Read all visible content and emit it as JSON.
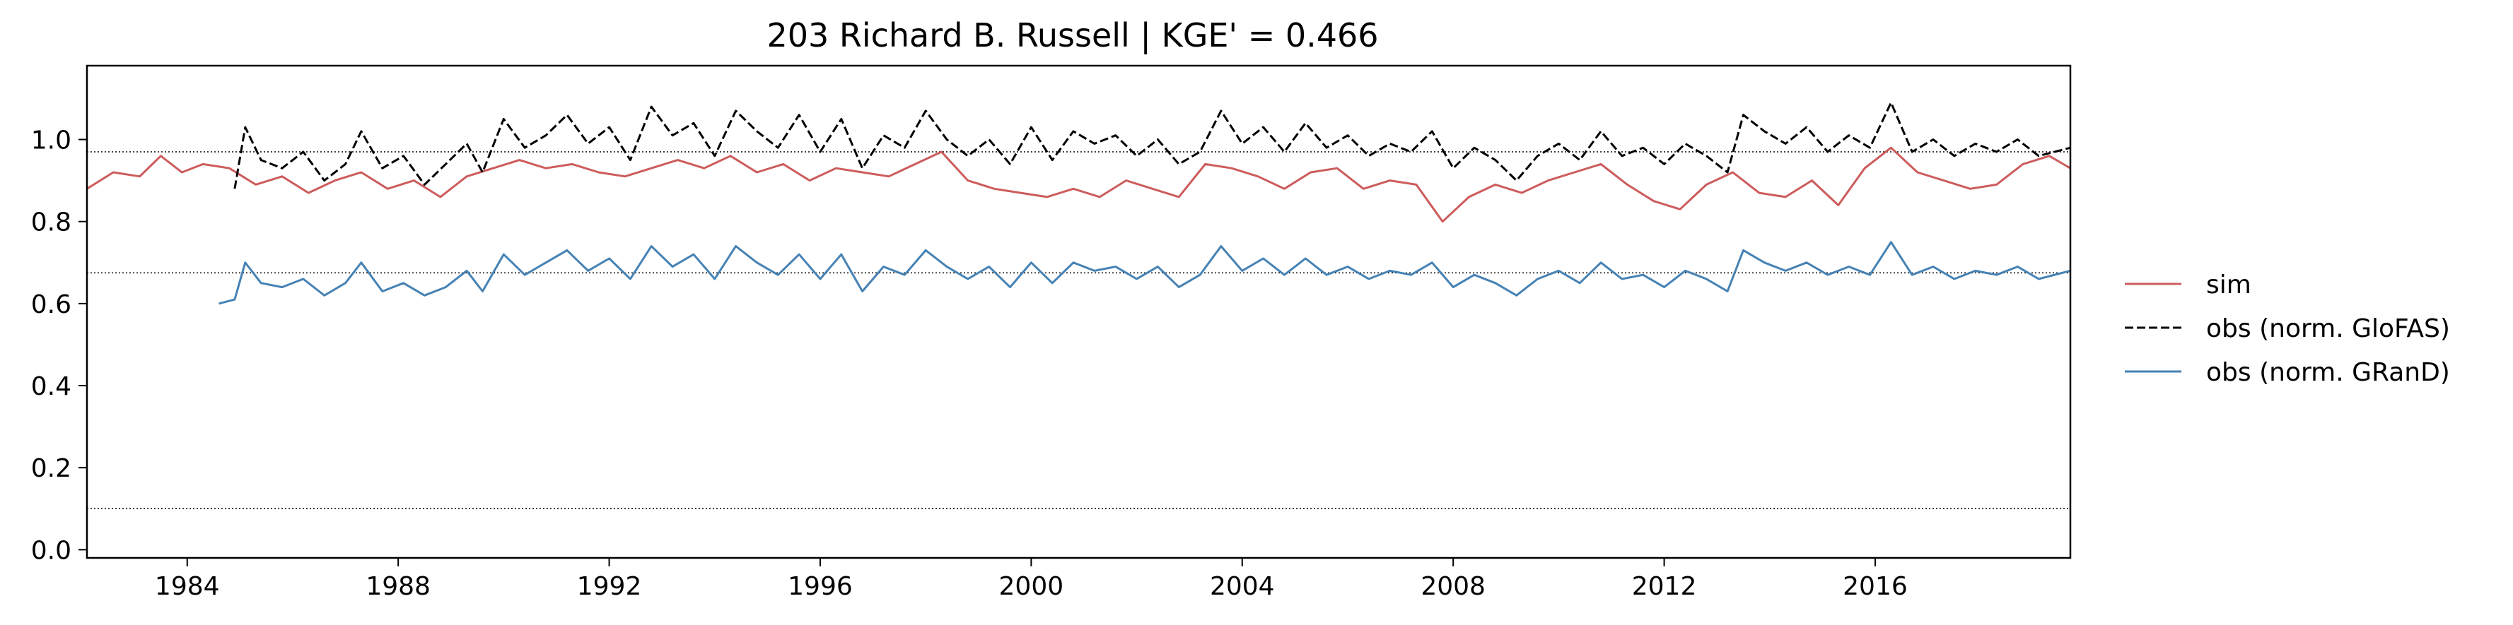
{
  "chart_data": {
    "type": "line",
    "title": "203  Richard B. Russell | KGE' = 0.466",
    "xlabel": "",
    "ylabel": "",
    "xlim": [
      1982.1,
      2019.7
    ],
    "ylim": [
      -0.02,
      1.18
    ],
    "xticks": [
      1984,
      1988,
      1992,
      1996,
      2000,
      2004,
      2008,
      2012,
      2016
    ],
    "yticks": [
      0.0,
      0.2,
      0.4,
      0.6,
      0.8,
      1.0
    ],
    "grid": false,
    "hlines": [
      0.97,
      0.675,
      0.1
    ],
    "legend_position": "right",
    "series": [
      {
        "name": "sim",
        "color": "#cd5c5c",
        "dash": "solid",
        "x": [
          1982.1,
          1982.6,
          1983.1,
          1983.5,
          1983.9,
          1984.3,
          1984.8,
          1985.3,
          1985.8,
          1986.3,
          1986.8,
          1987.3,
          1987.8,
          1988.3,
          1988.8,
          1989.3,
          1989.8,
          1990.3,
          1990.8,
          1991.3,
          1991.8,
          1992.3,
          1992.8,
          1993.3,
          1993.8,
          1994.3,
          1994.8,
          1995.3,
          1995.8,
          1996.3,
          1996.8,
          1997.3,
          1997.8,
          1998.3,
          1998.8,
          1999.3,
          1999.8,
          2000.3,
          2000.8,
          2001.3,
          2001.8,
          2002.3,
          2002.8,
          2003.3,
          2003.8,
          2004.3,
          2004.8,
          2005.3,
          2005.8,
          2006.3,
          2006.8,
          2007.3,
          2007.8,
          2008.3,
          2008.8,
          2009.3,
          2009.8,
          2010.3,
          2010.8,
          2011.3,
          2011.8,
          2012.3,
          2012.8,
          2013.3,
          2013.8,
          2014.3,
          2014.8,
          2015.3,
          2015.8,
          2016.3,
          2016.8,
          2017.3,
          2017.8,
          2018.3,
          2018.8,
          2019.3,
          2019.7
        ],
        "y": [
          0.88,
          0.92,
          0.91,
          0.96,
          0.92,
          0.94,
          0.93,
          0.89,
          0.91,
          0.87,
          0.9,
          0.92,
          0.88,
          0.9,
          0.86,
          0.91,
          0.93,
          0.95,
          0.93,
          0.94,
          0.92,
          0.91,
          0.93,
          0.95,
          0.93,
          0.96,
          0.92,
          0.94,
          0.9,
          0.93,
          0.92,
          0.91,
          0.94,
          0.97,
          0.9,
          0.88,
          0.87,
          0.86,
          0.88,
          0.86,
          0.9,
          0.88,
          0.86,
          0.94,
          0.93,
          0.91,
          0.88,
          0.92,
          0.93,
          0.88,
          0.9,
          0.89,
          0.8,
          0.86,
          0.89,
          0.87,
          0.9,
          0.92,
          0.94,
          0.89,
          0.85,
          0.83,
          0.89,
          0.92,
          0.87,
          0.86,
          0.9,
          0.84,
          0.93,
          0.98,
          0.92,
          0.9,
          0.88,
          0.89,
          0.94,
          0.96,
          0.93
        ]
      },
      {
        "name": "obs (norm. GloFAS)",
        "color": "#000000",
        "dash": "dashed",
        "x": [
          1984.9,
          1985.1,
          1985.4,
          1985.8,
          1986.2,
          1986.6,
          1987.0,
          1987.3,
          1987.7,
          1988.1,
          1988.5,
          1988.9,
          1989.3,
          1989.6,
          1990.0,
          1990.4,
          1990.8,
          1991.2,
          1991.6,
          1992.0,
          1992.4,
          1992.8,
          1993.2,
          1993.6,
          1994.0,
          1994.4,
          1994.8,
          1995.2,
          1995.6,
          1996.0,
          1996.4,
          1996.8,
          1997.2,
          1997.6,
          1998.0,
          1998.4,
          1998.8,
          1999.2,
          1999.6,
          2000.0,
          2000.4,
          2000.8,
          2001.2,
          2001.6,
          2002.0,
          2002.4,
          2002.8,
          2003.2,
          2003.6,
          2004.0,
          2004.4,
          2004.8,
          2005.2,
          2005.6,
          2006.0,
          2006.4,
          2006.8,
          2007.2,
          2007.6,
          2008.0,
          2008.4,
          2008.8,
          2009.2,
          2009.6,
          2010.0,
          2010.4,
          2010.8,
          2011.2,
          2011.6,
          2012.0,
          2012.4,
          2012.8,
          2013.2,
          2013.5,
          2013.9,
          2014.3,
          2014.7,
          2015.1,
          2015.5,
          2015.9,
          2016.3,
          2016.7,
          2017.1,
          2017.5,
          2017.9,
          2018.3,
          2018.7,
          2019.1,
          2019.7
        ],
        "y": [
          0.88,
          1.03,
          0.95,
          0.93,
          0.97,
          0.9,
          0.94,
          1.02,
          0.93,
          0.96,
          0.89,
          0.94,
          0.99,
          0.92,
          1.05,
          0.98,
          1.01,
          1.06,
          0.99,
          1.03,
          0.95,
          1.08,
          1.01,
          1.04,
          0.96,
          1.07,
          1.02,
          0.98,
          1.06,
          0.97,
          1.05,
          0.93,
          1.01,
          0.98,
          1.07,
          1.0,
          0.96,
          1.0,
          0.94,
          1.03,
          0.95,
          1.02,
          0.99,
          1.01,
          0.96,
          1.0,
          0.94,
          0.97,
          1.07,
          0.99,
          1.03,
          0.97,
          1.04,
          0.98,
          1.01,
          0.96,
          0.99,
          0.97,
          1.02,
          0.93,
          0.98,
          0.95,
          0.9,
          0.96,
          0.99,
          0.95,
          1.02,
          0.96,
          0.98,
          0.94,
          0.99,
          0.96,
          0.92,
          1.06,
          1.02,
          0.99,
          1.03,
          0.97,
          1.01,
          0.98,
          1.09,
          0.97,
          1.0,
          0.96,
          0.99,
          0.97,
          1.0,
          0.96,
          0.98
        ]
      },
      {
        "name": "obs (norm. GRanD)",
        "color": "#4682b4",
        "dash": "solid",
        "x": [
          1984.6,
          1984.9,
          1985.1,
          1985.4,
          1985.8,
          1986.2,
          1986.6,
          1987.0,
          1987.3,
          1987.7,
          1988.1,
          1988.5,
          1988.9,
          1989.3,
          1989.6,
          1990.0,
          1990.4,
          1990.8,
          1991.2,
          1991.6,
          1992.0,
          1992.4,
          1992.8,
          1993.2,
          1993.6,
          1994.0,
          1994.4,
          1994.8,
          1995.2,
          1995.6,
          1996.0,
          1996.4,
          1996.8,
          1997.2,
          1997.6,
          1998.0,
          1998.4,
          1998.8,
          1999.2,
          1999.6,
          2000.0,
          2000.4,
          2000.8,
          2001.2,
          2001.6,
          2002.0,
          2002.4,
          2002.8,
          2003.2,
          2003.6,
          2004.0,
          2004.4,
          2004.8,
          2005.2,
          2005.6,
          2006.0,
          2006.4,
          2006.8,
          2007.2,
          2007.6,
          2008.0,
          2008.4,
          2008.8,
          2009.2,
          2009.6,
          2010.0,
          2010.4,
          2010.8,
          2011.2,
          2011.6,
          2012.0,
          2012.4,
          2012.8,
          2013.2,
          2013.5,
          2013.9,
          2014.3,
          2014.7,
          2015.1,
          2015.5,
          2015.9,
          2016.3,
          2016.7,
          2017.1,
          2017.5,
          2017.9,
          2018.3,
          2018.7,
          2019.1,
          2019.7
        ],
        "y": [
          0.6,
          0.61,
          0.7,
          0.65,
          0.64,
          0.66,
          0.62,
          0.65,
          0.7,
          0.63,
          0.65,
          0.62,
          0.64,
          0.68,
          0.63,
          0.72,
          0.67,
          0.7,
          0.73,
          0.68,
          0.71,
          0.66,
          0.74,
          0.69,
          0.72,
          0.66,
          0.74,
          0.7,
          0.67,
          0.72,
          0.66,
          0.72,
          0.63,
          0.69,
          0.67,
          0.73,
          0.69,
          0.66,
          0.69,
          0.64,
          0.7,
          0.65,
          0.7,
          0.68,
          0.69,
          0.66,
          0.69,
          0.64,
          0.67,
          0.74,
          0.68,
          0.71,
          0.67,
          0.71,
          0.67,
          0.69,
          0.66,
          0.68,
          0.67,
          0.7,
          0.64,
          0.67,
          0.65,
          0.62,
          0.66,
          0.68,
          0.65,
          0.7,
          0.66,
          0.67,
          0.64,
          0.68,
          0.66,
          0.63,
          0.73,
          0.7,
          0.68,
          0.7,
          0.67,
          0.69,
          0.67,
          0.75,
          0.67,
          0.69,
          0.66,
          0.68,
          0.67,
          0.69,
          0.66,
          0.68
        ]
      }
    ]
  }
}
